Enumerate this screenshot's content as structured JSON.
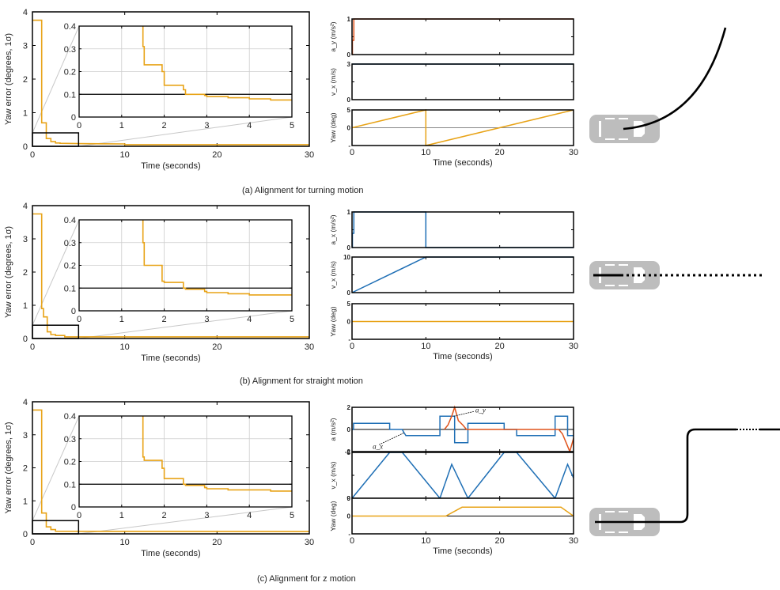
{
  "colors": {
    "yaw_error": "#e8a317",
    "accel_x": "#1f6fb5",
    "accel_y": "#e0531b",
    "velocity": "#1f6fb5",
    "yaw": "#e8a317",
    "threshold": "#000000",
    "grid": "#cccccc",
    "car": "#bdbdbd",
    "path": "#000000"
  },
  "chart_data": [
    {
      "id": "a",
      "caption": "(a) Alignment for turning motion",
      "error_plot": {
        "type": "line",
        "xlabel": "Time (seconds)",
        "ylabel": "Yaw error (degrees, 1σ)",
        "xlim": [
          0,
          30
        ],
        "ylim": [
          0,
          4
        ],
        "xticks": [
          "0",
          "10",
          "20",
          "30"
        ],
        "yticks": [
          "0",
          "1",
          "2",
          "3",
          "4"
        ],
        "series": [
          {
            "name": "yaw error",
            "x": [
              0,
              1,
              1,
              1.5,
              1.5,
              2,
              2,
              2.5,
              2.5,
              3,
              3,
              5,
              10,
              10,
              30
            ],
            "y": [
              3.75,
              3.75,
              0.7,
              0.7,
              0.23,
              0.23,
              0.14,
              0.14,
              0.1,
              0.1,
              0.09,
              0.08,
              0.07,
              0.05,
              0.05
            ]
          }
        ],
        "zoom_box": {
          "x": [
            0,
            5
          ],
          "y": [
            0,
            0.4
          ]
        },
        "inset": {
          "xlim": [
            0,
            5
          ],
          "ylim": [
            0,
            0.4
          ],
          "xticks": [
            "0",
            "1",
            "2",
            "3",
            "4",
            "5"
          ],
          "yticks": [
            "0",
            "0.1",
            "0.2",
            "0.3",
            "0.4"
          ],
          "grid": true,
          "threshold": 0.1,
          "x": [
            1.5,
            1.5,
            1.53,
            1.53,
            1.95,
            1.95,
            2.0,
            2.0,
            2.45,
            2.45,
            2.5,
            2.5,
            2.95,
            2.95,
            3.0,
            3.0,
            3.5,
            3.5,
            4.0,
            4.0,
            4.5,
            4.5,
            5.0
          ],
          "y": [
            0.4,
            0.31,
            0.31,
            0.23,
            0.23,
            0.2,
            0.2,
            0.14,
            0.14,
            0.12,
            0.12,
            0.1,
            0.1,
            0.095,
            0.095,
            0.09,
            0.09,
            0.085,
            0.085,
            0.08,
            0.08,
            0.075,
            0.075
          ]
        }
      },
      "signal_plots": {
        "xlabel": "Time (seconds)",
        "xlim": [
          0,
          30
        ],
        "xticks": [
          "0",
          "10",
          "20",
          "30"
        ],
        "subplots": [
          {
            "ylabel": "a_y (m/s²)",
            "ylim": [
              0,
              1
            ],
            "yticks": [
              "0",
              "1"
            ],
            "series": [
              {
                "name": "a_y",
                "color_key": "accel_y",
                "x": [
                  0,
                  0.05,
                  0.05,
                  0.25,
                  0.25,
                  30
                ],
                "y": [
                  0,
                  0,
                  0.4,
                  0.4,
                  1,
                  1
                ]
              }
            ]
          },
          {
            "ylabel": "v_x (m/s)",
            "ylim": [
              0,
              3
            ],
            "yticks": [
              "0",
              "3"
            ],
            "series": [
              {
                "name": "v_x",
                "color_key": "velocity",
                "x": [
                  0,
                  30
                ],
                "y": [
                  3,
                  3
                ]
              }
            ]
          },
          {
            "ylabel": "Yaw (deg)",
            "ylim": [
              -180,
              180
            ],
            "yticks": [
              "-",
              "0",
              "5"
            ],
            "zero_line": true,
            "series": [
              {
                "name": "yaw",
                "color_key": "yaw",
                "x": [
                  0,
                  10,
                  10,
                  30
                ],
                "y": [
                  0,
                  180,
                  -180,
                  180
                ]
              }
            ]
          }
        ]
      },
      "trajectory": {
        "type": "turning",
        "label": "car path"
      }
    },
    {
      "id": "b",
      "caption": "(b) Alignment for straight motion",
      "error_plot": {
        "type": "line",
        "xlabel": "Time (seconds)",
        "ylabel": "Yaw error (degrees, 1σ)",
        "xlim": [
          0,
          30
        ],
        "ylim": [
          0,
          4
        ],
        "xticks": [
          "0",
          "10",
          "20",
          "30"
        ],
        "yticks": [
          "0",
          "1",
          "2",
          "3",
          "4"
        ],
        "series": [
          {
            "name": "yaw error",
            "x": [
              0,
              1,
              1,
              1.2,
              1.2,
              1.6,
              1.6,
              2,
              2,
              2.5,
              2.5,
              3.5,
              3.5,
              30
            ],
            "y": [
              3.75,
              3.75,
              0.9,
              0.9,
              0.65,
              0.65,
              0.2,
              0.2,
              0.12,
              0.12,
              0.09,
              0.09,
              0.05,
              0.05
            ]
          }
        ],
        "zoom_box": {
          "x": [
            0,
            5
          ],
          "y": [
            0,
            0.4
          ]
        },
        "inset": {
          "xlim": [
            0,
            5
          ],
          "ylim": [
            0,
            0.4
          ],
          "xticks": [
            "0",
            "1",
            "2",
            "3",
            "4",
            "5"
          ],
          "yticks": [
            "0",
            "0.1",
            "0.2",
            "0.3",
            "0.4"
          ],
          "grid": true,
          "threshold": 0.1,
          "x": [
            1.5,
            1.5,
            1.53,
            1.53,
            1.95,
            1.95,
            2.0,
            2.0,
            2.45,
            2.45,
            2.5,
            2.5,
            2.95,
            2.95,
            3.0,
            3.0,
            3.5,
            3.5,
            4.0,
            4.0,
            5.0
          ],
          "y": [
            0.4,
            0.3,
            0.3,
            0.2,
            0.2,
            0.13,
            0.13,
            0.125,
            0.125,
            0.1,
            0.1,
            0.095,
            0.095,
            0.085,
            0.085,
            0.08,
            0.08,
            0.075,
            0.075,
            0.07,
            0.07
          ]
        }
      },
      "signal_plots": {
        "xlabel": "Time (seconds)",
        "xlim": [
          0,
          30
        ],
        "xticks": [
          "0",
          "10",
          "20",
          "30"
        ],
        "subplots": [
          {
            "ylabel": "a_x (m/s²)",
            "ylim": [
              0,
              1
            ],
            "yticks": [
              "0",
              "1"
            ],
            "series": [
              {
                "name": "a_x",
                "color_key": "accel_x",
                "x": [
                  0,
                  0.05,
                  0.05,
                  0.25,
                  0.25,
                  10,
                  10,
                  30
                ],
                "y": [
                  0,
                  0,
                  0.4,
                  0.4,
                  1,
                  1,
                  0,
                  0
                ]
              }
            ]
          },
          {
            "ylabel": "v_x (m/s)",
            "ylim": [
              0,
              10
            ],
            "yticks": [
              "0",
              "10"
            ],
            "series": [
              {
                "name": "v_x",
                "color_key": "velocity",
                "x": [
                  0,
                  10,
                  30
                ],
                "y": [
                  0,
                  10,
                  10
                ]
              }
            ]
          },
          {
            "ylabel": "Yaw (deg)",
            "ylim": [
              -5,
              5
            ],
            "yticks": [
              "-",
              "0",
              "5"
            ],
            "zero_line": false,
            "series": [
              {
                "name": "yaw",
                "color_key": "yaw",
                "x": [
                  0,
                  30
                ],
                "y": [
                  0,
                  0
                ]
              }
            ]
          }
        ]
      },
      "trajectory": {
        "type": "straight",
        "label": "car path"
      }
    },
    {
      "id": "c",
      "caption": "(c) Alignment for z motion",
      "error_plot": {
        "type": "line",
        "xlabel": "Time (seconds)",
        "ylabel": "Yaw error (degrees, 1σ)",
        "xlim": [
          0,
          30
        ],
        "ylim": [
          0,
          4
        ],
        "xticks": [
          "0",
          "10",
          "20",
          "30"
        ],
        "yticks": [
          "0",
          "1",
          "2",
          "3",
          "4"
        ],
        "series": [
          {
            "name": "yaw error",
            "x": [
              0,
              1,
              1,
              1.5,
              1.5,
              2,
              2,
              2.5,
              2.5,
              30
            ],
            "y": [
              3.75,
              3.75,
              0.63,
              0.63,
              0.21,
              0.21,
              0.13,
              0.13,
              0.08,
              0.07
            ]
          }
        ],
        "zoom_box": {
          "x": [
            0,
            5
          ],
          "y": [
            0,
            0.4
          ]
        },
        "inset": {
          "xlim": [
            0,
            5
          ],
          "ylim": [
            0,
            0.4
          ],
          "xticks": [
            "0",
            "1",
            "2",
            "3",
            "4",
            "5"
          ],
          "yticks": [
            "0",
            "0.1",
            "0.2",
            "0.3",
            "0.4"
          ],
          "grid": true,
          "threshold": 0.1,
          "x": [
            1.5,
            1.5,
            1.53,
            1.53,
            1.95,
            1.95,
            2.0,
            2.0,
            2.45,
            2.45,
            2.5,
            2.5,
            2.95,
            2.95,
            3.0,
            3.0,
            3.5,
            3.5,
            4.5,
            4.5,
            5.0
          ],
          "y": [
            0.4,
            0.22,
            0.22,
            0.205,
            0.205,
            0.17,
            0.17,
            0.125,
            0.125,
            0.1,
            0.1,
            0.095,
            0.095,
            0.085,
            0.085,
            0.08,
            0.08,
            0.075,
            0.075,
            0.07,
            0.07
          ]
        }
      },
      "signal_plots": {
        "xlabel": "Time (seconds)",
        "xlim": [
          0,
          30
        ],
        "xticks": [
          "0",
          "10",
          "20",
          "30"
        ],
        "subplots": [
          {
            "ylabel": "a (m/s²)",
            "ylim": [
              -2.5,
              2.5
            ],
            "yticks": [
              "-2",
              "0",
              "2"
            ],
            "zero_line": true,
            "annotations": [
              {
                "text": "a_x",
                "x": 7,
                "y": -0.4,
                "lx": 2.8,
                "ly": -1.9
              },
              {
                "text": "a_y",
                "x": 13.8,
                "y": 1.5,
                "lx": 16.7,
                "ly": 2.2
              }
            ],
            "series": [
              {
                "name": "a_x",
                "color_key": "accel_x",
                "x": [
                  0,
                  0.2,
                  0.2,
                  5.1,
                  5.1,
                  6.8,
                  7.0,
                  7.3,
                  7.3,
                  11.9,
                  11.9,
                  13.9,
                  13.9,
                  15.7,
                  15.7,
                  20.6,
                  20.6,
                  22.3,
                  22.3,
                  27.5,
                  27.5,
                  29.2,
                  29.2,
                  30
                ],
                "y": [
                  0,
                  0,
                  0.7,
                  0.7,
                  0,
                  0,
                  -0.3,
                  -0.7,
                  -0.7,
                  -0.7,
                  1.5,
                  1.5,
                  -1.5,
                  -1.5,
                  0.7,
                  0.7,
                  0,
                  0,
                  -0.7,
                  -0.7,
                  1.5,
                  1.5,
                  -0.7,
                  -0.7
                ]
              },
              {
                "name": "a_y",
                "color_key": "accel_y",
                "x": [
                  12.5,
                  13.0,
                  13.5,
                  13.9,
                  14.4,
                  15.0,
                  15.5,
                  28.0,
                  28.5,
                  29.0,
                  29.5,
                  30
                ],
                "y": [
                  0,
                  0.5,
                  1.5,
                  2.5,
                  1.0,
                  0.5,
                  0,
                  0,
                  -0.5,
                  -1.5,
                  -2.5,
                  -1.0
                ]
              }
            ]
          },
          {
            "ylabel": "v_x (m/s)",
            "ylim": [
              0,
              5
            ],
            "yticks": [
              "0",
              "5"
            ],
            "series": [
              {
                "name": "v_x",
                "color_key": "velocity",
                "x": [
                  0,
                  5.1,
                  6.8,
                  11.9,
                  13.5,
                  15.7,
                  20.6,
                  22.3,
                  27.5,
                  29.2,
                  30
                ],
                "y": [
                  0,
                  5,
                  5,
                  0,
                  3.7,
                  0,
                  5,
                  5,
                  0,
                  3.7,
                  2.2
                ]
              }
            ]
          },
          {
            "ylabel": "Yaw (deg)",
            "ylim": [
              -90,
              90
            ],
            "yticks": [
              "-",
              "0",
              "9"
            ],
            "zero_line": true,
            "series": [
              {
                "name": "yaw",
                "color_key": "yaw",
                "x": [
                  0,
                  12.7,
                  14.9,
                  28.3,
                  30
                ],
                "y": [
                  0,
                  0,
                  45,
                  45,
                  0
                ]
              }
            ]
          }
        ]
      },
      "trajectory": {
        "type": "z",
        "label": "car path"
      }
    }
  ]
}
